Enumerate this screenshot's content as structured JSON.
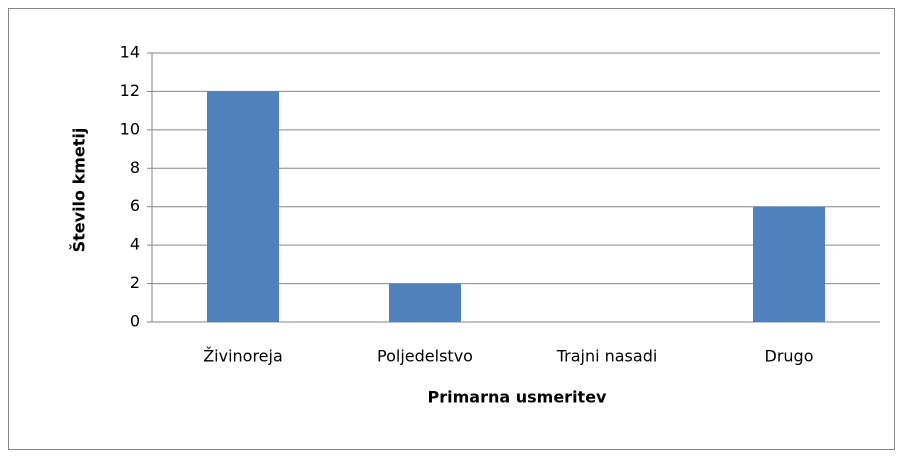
{
  "chart_data": {
    "type": "bar",
    "categories": [
      "Živinoreja",
      "Poljedelstvo",
      "Trajni nasadi",
      "Drugo"
    ],
    "values": [
      12,
      2,
      0,
      6
    ],
    "color": "#4f81bd",
    "ylim": [
      0,
      14
    ],
    "yticks": [
      0,
      2,
      4,
      6,
      8,
      10,
      12,
      14
    ],
    "grid": true,
    "x_label": "Primarna usmeritev",
    "y_label": "Število kmetij"
  }
}
